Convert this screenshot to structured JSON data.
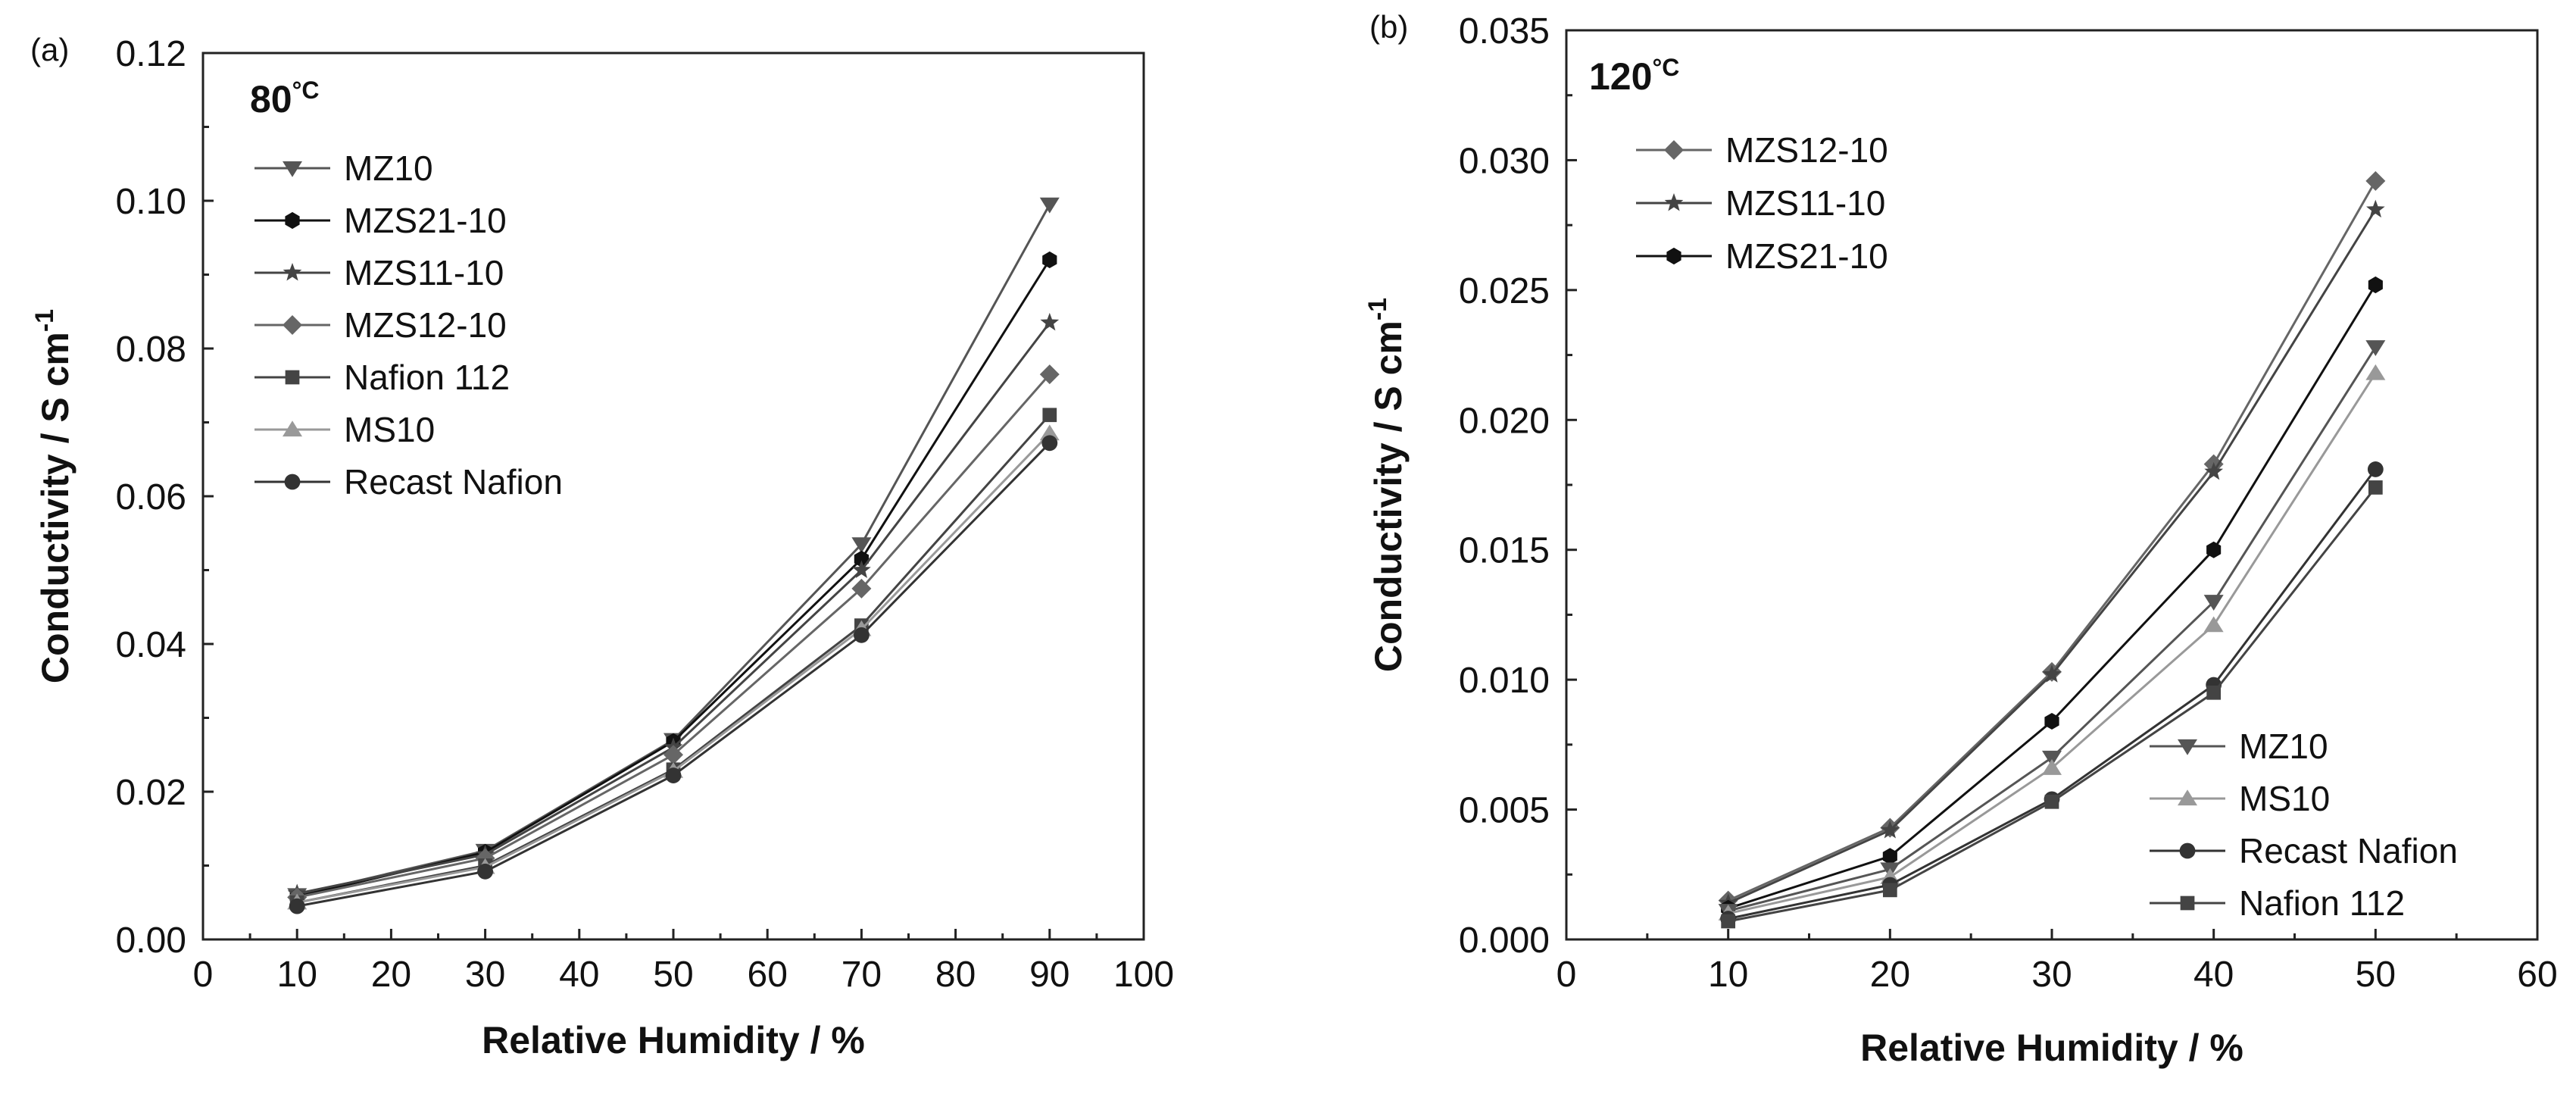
{
  "chart_data": [
    {
      "type": "line",
      "panel_label": "(a)",
      "temperature": "80",
      "temperature_unit": "°C",
      "xlabel": "Relative Humidity / %",
      "ylabel": "Conductivity / S cm",
      "ylabel_superscript": "-1",
      "xlim": [
        0,
        100
      ],
      "ylim": [
        0,
        0.12
      ],
      "xticks": [
        0,
        10,
        20,
        30,
        40,
        50,
        60,
        70,
        80,
        90,
        100
      ],
      "yticks": [
        "0.00",
        "0.02",
        "0.04",
        "0.06",
        "0.08",
        "0.10",
        "0.12"
      ],
      "legend_position": "top-left",
      "x": [
        10,
        30,
        50,
        70,
        90
      ],
      "series": [
        {
          "name": "MZ10",
          "marker": "triangle-down",
          "color": "#555555",
          "values": [
            0.006,
            0.012,
            0.027,
            0.0535,
            0.0995
          ]
        },
        {
          "name": "MZS21-10",
          "marker": "hexagon",
          "color": "#111111",
          "values": [
            0.0058,
            0.0118,
            0.0268,
            0.0515,
            0.092
          ]
        },
        {
          "name": "MZS11-10",
          "marker": "star",
          "color": "#444444",
          "values": [
            0.0062,
            0.0115,
            0.026,
            0.05,
            0.0835
          ]
        },
        {
          "name": "MZS12-10",
          "marker": "diamond",
          "color": "#666666",
          "values": [
            0.0057,
            0.011,
            0.025,
            0.0475,
            0.0765
          ]
        },
        {
          "name": "Nafion 112",
          "marker": "square",
          "color": "#444444",
          "values": [
            0.005,
            0.01,
            0.023,
            0.0425,
            0.071
          ]
        },
        {
          "name": "MS10",
          "marker": "triangle-up",
          "color": "#999999",
          "values": [
            0.005,
            0.0098,
            0.0228,
            0.042,
            0.0685
          ]
        },
        {
          "name": "Recast Nafion",
          "marker": "circle",
          "color": "#333333",
          "values": [
            0.0045,
            0.0092,
            0.0222,
            0.0412,
            0.0672
          ]
        }
      ]
    },
    {
      "type": "line",
      "panel_label": "(b)",
      "temperature": "120",
      "temperature_unit": "°C",
      "xlabel": "Relative Humidity / %",
      "ylabel": "Conductivity / S cm",
      "ylabel_superscript": "-1",
      "xlim": [
        0,
        60
      ],
      "ylim": [
        0,
        0.035
      ],
      "xticks": [
        0,
        10,
        20,
        30,
        40,
        50,
        60
      ],
      "yticks": [
        "0.000",
        "0.005",
        "0.010",
        "0.015",
        "0.020",
        "0.025",
        "0.030",
        "0.035"
      ],
      "legend_groups": [
        {
          "position": "top-left",
          "entries": [
            "MZS12-10",
            "MZS11-10",
            "MZS21-10"
          ]
        },
        {
          "position": "bottom-right",
          "entries": [
            "MZ10",
            "MS10",
            "Recast Nafion",
            "Nafion 112"
          ]
        }
      ],
      "x": [
        10,
        20,
        30,
        40,
        50
      ],
      "series": [
        {
          "name": "MZS12-10",
          "marker": "diamond",
          "color": "#666666",
          "values": [
            0.0015,
            0.0043,
            0.0103,
            0.0183,
            0.0292
          ]
        },
        {
          "name": "MZS11-10",
          "marker": "star",
          "color": "#444444",
          "values": [
            0.0014,
            0.0042,
            0.0102,
            0.018,
            0.0281
          ]
        },
        {
          "name": "MZS21-10",
          "marker": "hexagon",
          "color": "#111111",
          "values": [
            0.0012,
            0.0032,
            0.0084,
            0.015,
            0.0252
          ]
        },
        {
          "name": "MZ10",
          "marker": "triangle-down",
          "color": "#555555",
          "values": [
            0.0011,
            0.0027,
            0.007,
            0.013,
            0.0228
          ]
        },
        {
          "name": "MS10",
          "marker": "triangle-up",
          "color": "#999999",
          "values": [
            0.001,
            0.0024,
            0.0066,
            0.0121,
            0.0218
          ]
        },
        {
          "name": "Recast Nafion",
          "marker": "circle",
          "color": "#333333",
          "values": [
            0.0008,
            0.0021,
            0.0054,
            0.0098,
            0.0181
          ]
        },
        {
          "name": "Nafion 112",
          "marker": "square",
          "color": "#444444",
          "values": [
            0.0007,
            0.0019,
            0.0053,
            0.0095,
            0.0174
          ]
        }
      ]
    }
  ]
}
